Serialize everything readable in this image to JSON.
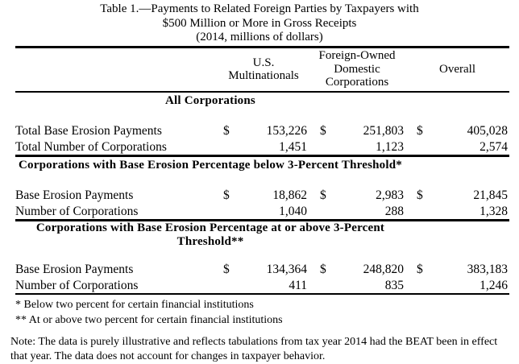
{
  "title": {
    "lines": [
      "Table 1.—Payments to Related Foreign Parties by Taxpayers with",
      "$500 Million or More in Gross Receipts",
      "(2014, millions of dollars)"
    ]
  },
  "table": {
    "currency_symbol": "$",
    "column_groups": [
      "U.S. Multinationals",
      "Foreign-Owned Domestic Corporations",
      "Overall"
    ],
    "sections": [
      {
        "header": "All Corporations",
        "rows": [
          {
            "label": "Total Base Erosion Payments",
            "currency": true,
            "values": [
              "153,226",
              "251,803",
              "405,028"
            ]
          },
          {
            "label": "Total Number of Corporations",
            "currency": false,
            "values": [
              "1,451",
              "1,123",
              "2,574"
            ]
          }
        ]
      },
      {
        "header": "Corporations with Base Erosion Percentage below 3-Percent Threshold*",
        "rows": [
          {
            "label": "Base Erosion Payments",
            "currency": true,
            "values": [
              "18,862",
              "2,983",
              "21,845"
            ]
          },
          {
            "label": "Number of Corporations",
            "currency": false,
            "values": [
              "1,040",
              "288",
              "1,328"
            ]
          }
        ]
      },
      {
        "header": "Corporations with Base Erosion Percentage at or above 3-Percent Threshold**",
        "rows": [
          {
            "label": "Base Erosion Payments",
            "currency": true,
            "values": [
              "134,364",
              "248,820",
              "383,183"
            ]
          },
          {
            "label": "Number of Corporations",
            "currency": false,
            "values": [
              "411",
              "835",
              "1,246"
            ]
          }
        ]
      }
    ]
  },
  "footnotes": [
    "* Below two percent for certain financial institutions",
    "** At or above two percent for certain financial institutions"
  ],
  "note": "Note: The data is purely illustrative and reflects tabulations from tax year 2014 had the BEAT been in effect that year. The data does not account for changes in taxpayer behavior."
}
